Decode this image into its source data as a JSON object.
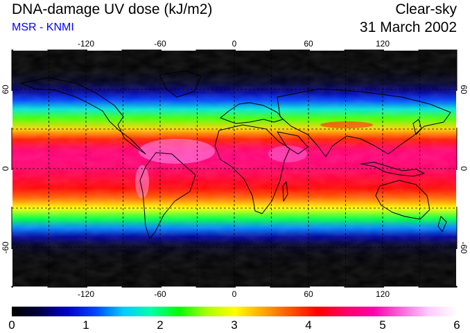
{
  "header": {
    "title": "DNA-damage UV dose (kJ/m2)",
    "subtitle": "MSR - KNMI",
    "sky_condition": "Clear-sky",
    "date": "31 March 2002"
  },
  "map": {
    "lon_range": [
      -180,
      180
    ],
    "lat_range": [
      -90,
      90
    ],
    "lon_ticks": [
      "-120",
      "-60",
      "0",
      "60",
      "120"
    ],
    "lat_ticks_left": [
      "60",
      "0",
      "-60"
    ],
    "lat_ticks_right": [
      "60",
      "0",
      "-60"
    ],
    "gridlines": "dashed",
    "grid_lon_values": [
      -150,
      -120,
      -90,
      -60,
      -30,
      0,
      30,
      60,
      90,
      120,
      150
    ],
    "grid_lat_values": [
      -60,
      -30,
      0,
      30,
      60
    ],
    "background_color": "#000000"
  },
  "colorbar": {
    "ticks": [
      "0",
      "1",
      "2",
      "3",
      "4",
      "5",
      "6"
    ],
    "range": [
      0,
      6
    ],
    "colors": [
      "#000000",
      "#000044",
      "#0000cc",
      "#0044ff",
      "#00ccff",
      "#00ffaa",
      "#00ff00",
      "#aaff00",
      "#ffff00",
      "#ffaa00",
      "#ff5500",
      "#ff0000",
      "#ff0066",
      "#ff00aa",
      "#ff66dd",
      "#ffccff",
      "#ffffff"
    ]
  },
  "chart_data": {
    "type": "heatmap",
    "title": "DNA-damage UV dose (kJ/m2)",
    "value_range": [
      0,
      6
    ],
    "latitude_profile": {
      "lat": [
        90,
        75,
        65,
        58,
        52,
        45,
        38,
        30,
        22,
        15,
        8,
        0,
        -8,
        -15,
        -22,
        -30,
        -38,
        -45,
        -52,
        -58,
        -65,
        -75,
        -90
      ],
      "dose": [
        0,
        0,
        0.2,
        0.6,
        1.1,
        1.7,
        2.4,
        3.2,
        4.0,
        4.5,
        4.6,
        4.5,
        4.3,
        4.1,
        3.7,
        3.0,
        2.1,
        1.3,
        0.6,
        0.2,
        0.05,
        0,
        0
      ]
    }
  }
}
